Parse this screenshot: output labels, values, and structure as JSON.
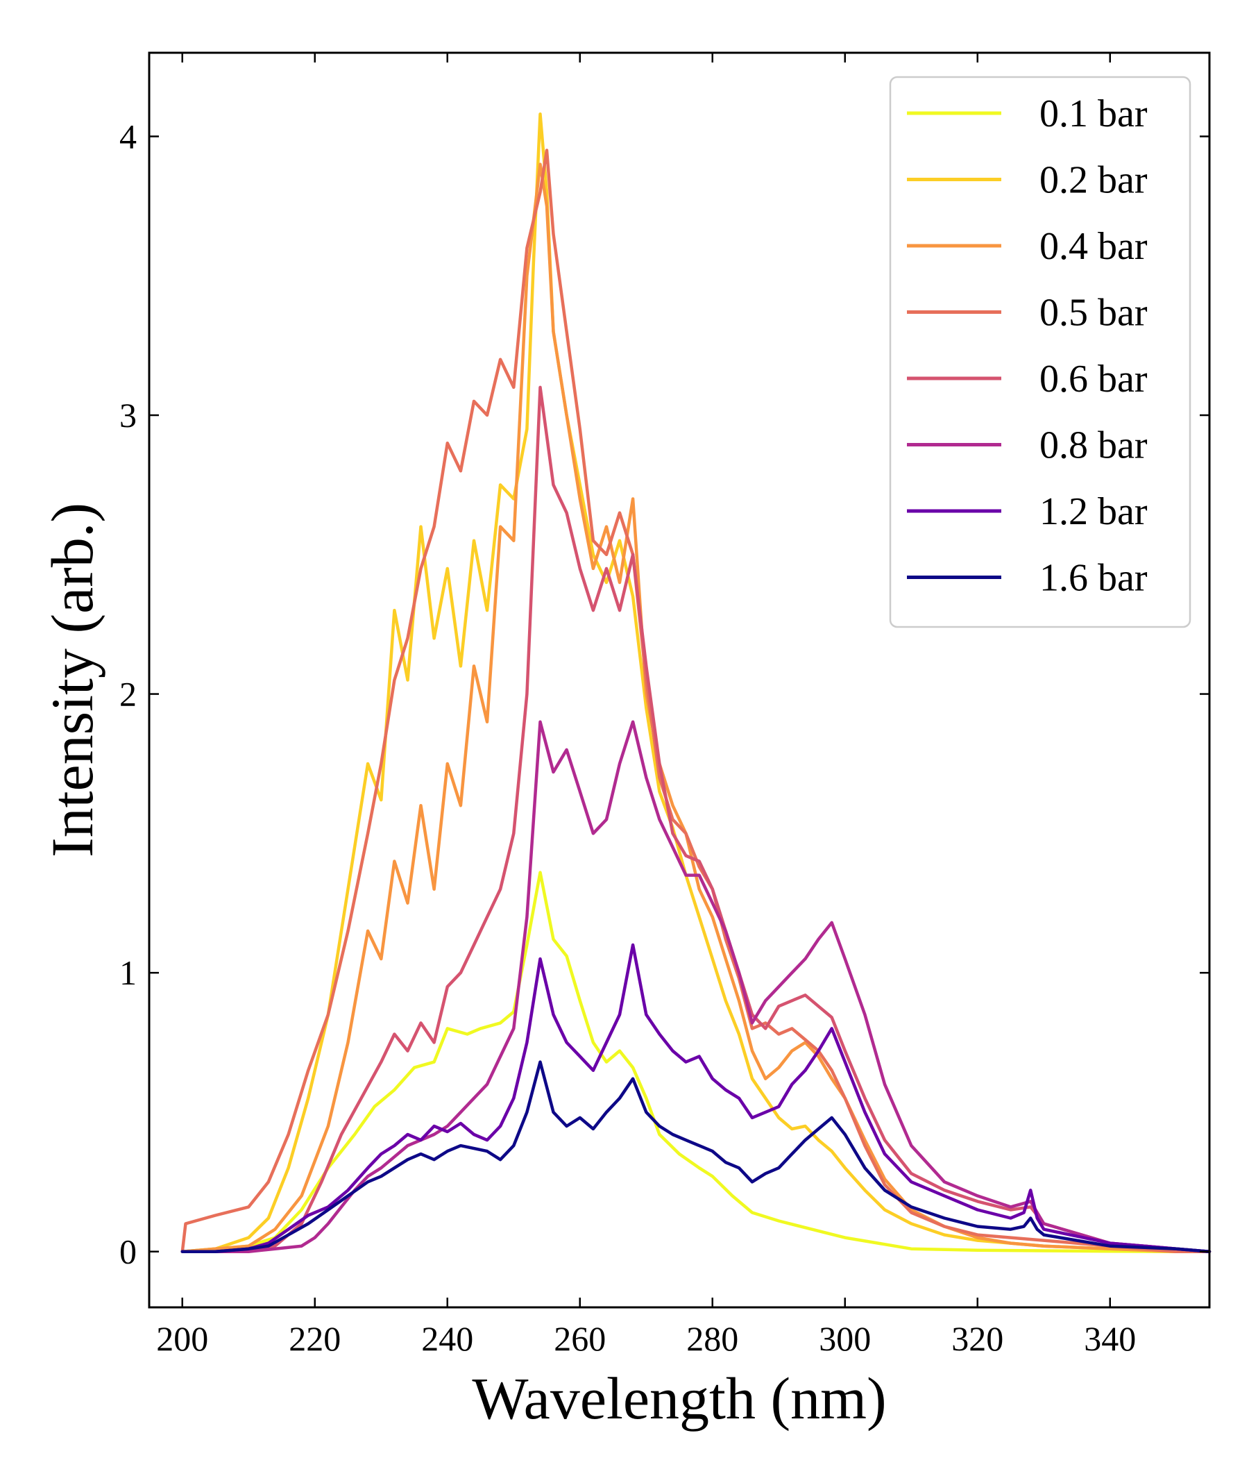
{
  "chart_data": {
    "type": "line",
    "xlabel": "Wavelength (nm)",
    "ylabel": "Intensity (arb.)",
    "xlim": [
      195,
      355
    ],
    "ylim": [
      -0.2,
      4.3
    ],
    "xticks": [
      200,
      220,
      240,
      260,
      280,
      300,
      320,
      340
    ],
    "yticks": [
      0,
      1,
      2,
      3,
      4
    ],
    "grid": false,
    "legend_position": "top-right",
    "series": [
      {
        "name": "0.1 bar",
        "color": "#f0f921",
        "x": [
          200,
          205,
          210,
          214,
          218,
          222,
          226,
          229,
          232,
          235,
          238,
          240,
          243,
          245,
          248,
          250,
          252,
          254,
          256,
          258,
          260,
          262,
          264,
          266,
          268,
          270,
          272,
          275,
          278,
          280,
          283,
          286,
          290,
          295,
          300,
          305,
          310,
          320,
          330,
          340,
          350,
          355
        ],
        "y": [
          0,
          0.01,
          0.02,
          0.05,
          0.15,
          0.3,
          0.42,
          0.52,
          0.58,
          0.66,
          0.68,
          0.8,
          0.78,
          0.8,
          0.82,
          0.86,
          1.1,
          1.36,
          1.12,
          1.06,
          0.9,
          0.75,
          0.68,
          0.72,
          0.66,
          0.55,
          0.42,
          0.35,
          0.3,
          0.27,
          0.2,
          0.14,
          0.11,
          0.08,
          0.05,
          0.03,
          0.01,
          0.005,
          0.003,
          0.001,
          0,
          0
        ]
      },
      {
        "name": "0.2 bar",
        "color": "#fcce25",
        "x": [
          200,
          205,
          210,
          213,
          216,
          219,
          222,
          225,
          228,
          230,
          232,
          234,
          236,
          238,
          240,
          242,
          244,
          246,
          248,
          250,
          252,
          253,
          254,
          255,
          256,
          258,
          260,
          262,
          264,
          266,
          268,
          270,
          272,
          274,
          276,
          278,
          280,
          282,
          284,
          286,
          288,
          290,
          292,
          294,
          296,
          298,
          300,
          303,
          306,
          310,
          315,
          320,
          325,
          330,
          340,
          350,
          355
        ],
        "y": [
          0,
          0.01,
          0.05,
          0.12,
          0.3,
          0.55,
          0.85,
          1.3,
          1.75,
          1.62,
          2.3,
          2.05,
          2.6,
          2.2,
          2.45,
          2.1,
          2.55,
          2.3,
          2.75,
          2.7,
          2.95,
          3.55,
          4.08,
          3.8,
          3.3,
          3.0,
          2.75,
          2.5,
          2.4,
          2.55,
          2.35,
          1.95,
          1.65,
          1.52,
          1.35,
          1.2,
          1.05,
          0.9,
          0.78,
          0.62,
          0.55,
          0.48,
          0.44,
          0.45,
          0.4,
          0.36,
          0.3,
          0.22,
          0.15,
          0.1,
          0.06,
          0.04,
          0.03,
          0.02,
          0.01,
          0,
          0
        ]
      },
      {
        "name": "0.4 bar",
        "color": "#f89540",
        "x": [
          200,
          205,
          210,
          214,
          218,
          222,
          225,
          228,
          230,
          232,
          234,
          236,
          238,
          240,
          242,
          244,
          246,
          248,
          250,
          252,
          254,
          255,
          256,
          258,
          260,
          262,
          264,
          266,
          268,
          270,
          272,
          274,
          276,
          278,
          280,
          282,
          284,
          286,
          288,
          290,
          292,
          294,
          296,
          298,
          300,
          303,
          306,
          310,
          315,
          320,
          325,
          330,
          340,
          350,
          355
        ],
        "y": [
          0,
          0.01,
          0.02,
          0.08,
          0.2,
          0.45,
          0.75,
          1.15,
          1.05,
          1.4,
          1.25,
          1.6,
          1.3,
          1.75,
          1.6,
          2.1,
          1.9,
          2.6,
          2.55,
          3.5,
          3.9,
          3.75,
          3.3,
          3.0,
          2.7,
          2.45,
          2.6,
          2.4,
          2.7,
          2.0,
          1.75,
          1.6,
          1.5,
          1.3,
          1.2,
          1.05,
          0.9,
          0.72,
          0.62,
          0.66,
          0.72,
          0.75,
          0.7,
          0.62,
          0.55,
          0.4,
          0.26,
          0.15,
          0.09,
          0.05,
          0.03,
          0.02,
          0.01,
          0,
          0
        ]
      },
      {
        "name": "0.5 bar",
        "color": "#e76f5a",
        "x": [
          200,
          200.5,
          205,
          210,
          213,
          216,
          219,
          222,
          225,
          228,
          230,
          232,
          234,
          236,
          238,
          240,
          242,
          244,
          246,
          248,
          250,
          252,
          254,
          255,
          256,
          258,
          260,
          262,
          264,
          266,
          268,
          270,
          272,
          274,
          276,
          278,
          280,
          282,
          284,
          286,
          288,
          290,
          292,
          294,
          296,
          298,
          300,
          303,
          306,
          310,
          315,
          320,
          325,
          330,
          340,
          350,
          355
        ],
        "y": [
          0,
          0.1,
          0.13,
          0.16,
          0.25,
          0.42,
          0.65,
          0.85,
          1.15,
          1.5,
          1.75,
          2.05,
          2.2,
          2.45,
          2.6,
          2.9,
          2.8,
          3.05,
          3.0,
          3.2,
          3.1,
          3.6,
          3.8,
          3.95,
          3.65,
          3.3,
          2.95,
          2.55,
          2.5,
          2.65,
          2.5,
          2.05,
          1.7,
          1.55,
          1.5,
          1.38,
          1.3,
          1.12,
          0.98,
          0.8,
          0.82,
          0.78,
          0.8,
          0.76,
          0.72,
          0.65,
          0.55,
          0.38,
          0.24,
          0.14,
          0.09,
          0.06,
          0.05,
          0.04,
          0.02,
          0,
          0
        ]
      },
      {
        "name": "0.6 bar",
        "color": "#d5536f",
        "x": [
          200,
          205,
          210,
          214,
          218,
          221,
          224,
          227,
          230,
          232,
          234,
          236,
          238,
          240,
          242,
          244,
          246,
          248,
          250,
          252,
          254,
          256,
          258,
          260,
          262,
          264,
          266,
          268,
          270,
          272,
          274,
          276,
          278,
          280,
          282,
          284,
          286,
          288,
          290,
          292,
          294,
          296,
          298,
          300,
          303,
          306,
          310,
          315,
          320,
          325,
          328,
          330,
          340,
          350,
          355
        ],
        "y": [
          0,
          0,
          0.01,
          0.02,
          0.1,
          0.25,
          0.42,
          0.55,
          0.68,
          0.78,
          0.72,
          0.82,
          0.75,
          0.95,
          1.0,
          1.1,
          1.2,
          1.3,
          1.5,
          2.0,
          3.1,
          2.75,
          2.65,
          2.45,
          2.3,
          2.45,
          2.3,
          2.5,
          2.1,
          1.75,
          1.5,
          1.42,
          1.4,
          1.3,
          1.15,
          1.0,
          0.85,
          0.8,
          0.88,
          0.9,
          0.92,
          0.88,
          0.84,
          0.72,
          0.55,
          0.4,
          0.28,
          0.22,
          0.18,
          0.15,
          0.16,
          0.1,
          0.03,
          0.01,
          0
        ]
      },
      {
        "name": "0.8 bar",
        "color": "#b12a90",
        "x": [
          200,
          205,
          210,
          214,
          218,
          220,
          222,
          224,
          226,
          228,
          230,
          232,
          234,
          236,
          238,
          240,
          242,
          244,
          246,
          248,
          250,
          252,
          254,
          256,
          258,
          260,
          262,
          264,
          266,
          268,
          270,
          272,
          274,
          276,
          278,
          280,
          282,
          284,
          286,
          288,
          290,
          292,
          294,
          296,
          298,
          300,
          303,
          306,
          310,
          315,
          320,
          325,
          328,
          330,
          340,
          350,
          355
        ],
        "y": [
          0,
          0,
          0,
          0.01,
          0.02,
          0.05,
          0.1,
          0.16,
          0.22,
          0.27,
          0.3,
          0.34,
          0.38,
          0.4,
          0.42,
          0.45,
          0.5,
          0.55,
          0.6,
          0.7,
          0.8,
          1.2,
          1.9,
          1.72,
          1.8,
          1.65,
          1.5,
          1.55,
          1.75,
          1.9,
          1.7,
          1.55,
          1.45,
          1.35,
          1.35,
          1.25,
          1.15,
          1.0,
          0.82,
          0.9,
          0.95,
          1.0,
          1.05,
          1.12,
          1.18,
          1.05,
          0.85,
          0.6,
          0.38,
          0.25,
          0.2,
          0.16,
          0.18,
          0.1,
          0.03,
          0.01,
          0
        ]
      },
      {
        "name": "1.2 bar",
        "color": "#6a00a8",
        "x": [
          200,
          205,
          210,
          213,
          216,
          219,
          222,
          225,
          228,
          230,
          232,
          234,
          236,
          238,
          240,
          242,
          244,
          246,
          248,
          250,
          252,
          254,
          256,
          258,
          260,
          262,
          264,
          266,
          268,
          270,
          272,
          274,
          276,
          278,
          280,
          282,
          284,
          286,
          288,
          290,
          292,
          294,
          296,
          298,
          300,
          303,
          306,
          310,
          315,
          320,
          325,
          327,
          328,
          329,
          330,
          340,
          350,
          355
        ],
        "y": [
          0,
          0,
          0.01,
          0.03,
          0.08,
          0.13,
          0.16,
          0.22,
          0.3,
          0.35,
          0.38,
          0.42,
          0.4,
          0.45,
          0.43,
          0.46,
          0.42,
          0.4,
          0.45,
          0.55,
          0.75,
          1.05,
          0.85,
          0.75,
          0.7,
          0.65,
          0.75,
          0.85,
          1.1,
          0.85,
          0.78,
          0.72,
          0.68,
          0.7,
          0.62,
          0.58,
          0.55,
          0.48,
          0.5,
          0.52,
          0.6,
          0.65,
          0.72,
          0.8,
          0.68,
          0.5,
          0.35,
          0.25,
          0.2,
          0.15,
          0.12,
          0.14,
          0.22,
          0.12,
          0.08,
          0.03,
          0.01,
          0
        ]
      },
      {
        "name": "1.6 bar",
        "color": "#0d0887",
        "x": [
          200,
          205,
          210,
          213,
          216,
          219,
          222,
          225,
          228,
          230,
          232,
          234,
          236,
          238,
          240,
          242,
          244,
          246,
          248,
          250,
          252,
          254,
          256,
          258,
          260,
          262,
          264,
          266,
          268,
          270,
          272,
          274,
          276,
          278,
          280,
          282,
          284,
          286,
          288,
          290,
          292,
          294,
          296,
          298,
          300,
          303,
          306,
          310,
          315,
          320,
          325,
          327,
          328,
          329,
          330,
          340,
          350,
          355
        ],
        "y": [
          0,
          0,
          0.01,
          0.02,
          0.06,
          0.1,
          0.15,
          0.2,
          0.25,
          0.27,
          0.3,
          0.33,
          0.35,
          0.33,
          0.36,
          0.38,
          0.37,
          0.36,
          0.33,
          0.38,
          0.5,
          0.68,
          0.5,
          0.45,
          0.48,
          0.44,
          0.5,
          0.55,
          0.62,
          0.5,
          0.45,
          0.42,
          0.4,
          0.38,
          0.36,
          0.32,
          0.3,
          0.25,
          0.28,
          0.3,
          0.35,
          0.4,
          0.44,
          0.48,
          0.42,
          0.3,
          0.22,
          0.16,
          0.12,
          0.09,
          0.08,
          0.09,
          0.12,
          0.08,
          0.06,
          0.02,
          0.01,
          0
        ]
      }
    ]
  }
}
